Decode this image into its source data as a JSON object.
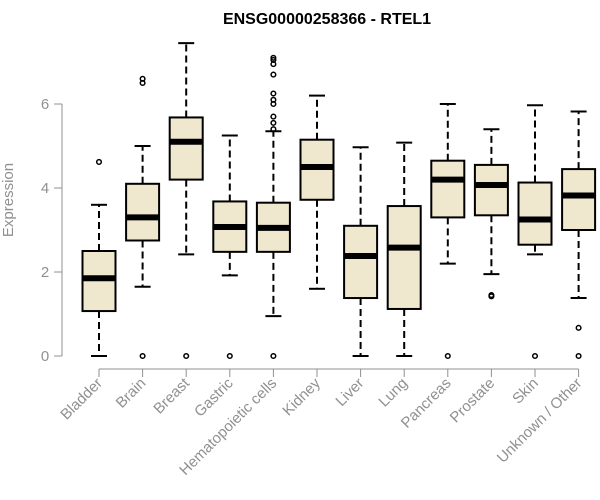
{
  "chart_data": {
    "type": "boxplot",
    "title": "ENSG00000258366 - RTEL1",
    "xlabel": "",
    "ylabel": "Expression",
    "ylim": [
      0,
      7.5
    ],
    "yticks": [
      0,
      2,
      4,
      6
    ],
    "grid": false,
    "box_color": "#F0E8CE",
    "categories": [
      "Bladder",
      "Brain",
      "Breast",
      "Gastric",
      "Hematopoietic cells",
      "Kidney",
      "Liver",
      "Lung",
      "Pancreas",
      "Prostate",
      "Skin",
      "Unknown / Other"
    ],
    "boxes": [
      {
        "whisker_low": 0.0,
        "q1": 1.07,
        "median": 1.85,
        "q3": 2.5,
        "whisker_high": 3.6,
        "outliers": [
          4.62
        ]
      },
      {
        "whisker_low": 1.65,
        "q1": 2.75,
        "median": 3.3,
        "q3": 4.1,
        "whisker_high": 5.0,
        "outliers": [
          0.0,
          6.5,
          6.6
        ]
      },
      {
        "whisker_low": 2.42,
        "q1": 4.2,
        "median": 5.1,
        "q3": 5.68,
        "whisker_high": 7.45,
        "outliers": [
          0.0
        ]
      },
      {
        "whisker_low": 1.92,
        "q1": 2.48,
        "median": 3.07,
        "q3": 3.68,
        "whisker_high": 5.25,
        "outliers": [
          0.0
        ]
      },
      {
        "whisker_low": 0.95,
        "q1": 2.48,
        "median": 3.05,
        "q3": 3.65,
        "whisker_high": 5.35,
        "outliers": [
          0.0,
          5.4,
          5.55,
          5.7,
          6.0,
          6.1,
          6.25,
          6.7,
          6.95,
          7.05,
          7.1
        ]
      },
      {
        "whisker_low": 1.6,
        "q1": 3.72,
        "median": 4.5,
        "q3": 5.15,
        "whisker_high": 6.2,
        "outliers": []
      },
      {
        "whisker_low": 0.0,
        "q1": 1.38,
        "median": 2.38,
        "q3": 3.1,
        "whisker_high": 4.97,
        "outliers": []
      },
      {
        "whisker_low": 0.0,
        "q1": 1.12,
        "median": 2.58,
        "q3": 3.57,
        "whisker_high": 5.08,
        "outliers": []
      },
      {
        "whisker_low": 2.2,
        "q1": 3.3,
        "median": 4.2,
        "q3": 4.65,
        "whisker_high": 6.0,
        "outliers": [
          0.0
        ]
      },
      {
        "whisker_low": 1.95,
        "q1": 3.35,
        "median": 4.07,
        "q3": 4.55,
        "whisker_high": 5.4,
        "outliers": [
          1.42,
          1.45
        ]
      },
      {
        "whisker_low": 2.42,
        "q1": 2.65,
        "median": 3.25,
        "q3": 4.13,
        "whisker_high": 5.97,
        "outliers": [
          0.0
        ]
      },
      {
        "whisker_low": 1.38,
        "q1": 3.0,
        "median": 3.82,
        "q3": 4.45,
        "whisker_high": 5.82,
        "outliers": [
          0.0,
          0.67
        ]
      }
    ]
  }
}
